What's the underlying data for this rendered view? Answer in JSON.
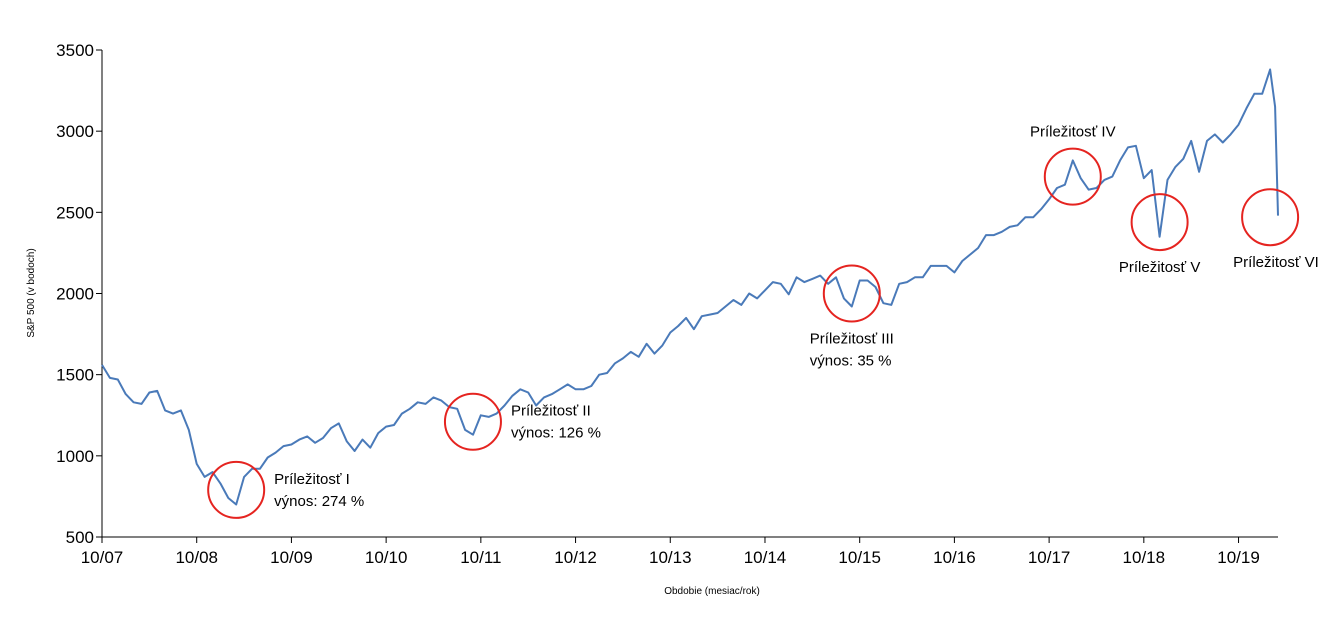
{
  "chart_data": {
    "type": "line",
    "xlabel": "Obdobie (mesiac/rok)",
    "ylabel": "S&P 500 (v bodoch)",
    "ylim": [
      500,
      3500
    ],
    "yticks": [
      500,
      1000,
      1500,
      2000,
      2500,
      3000,
      3500
    ],
    "xlim": [
      "2007-10",
      "2020-03"
    ],
    "xticks": [
      "10/07",
      "10/08",
      "10/09",
      "10/10",
      "10/11",
      "10/12",
      "10/13",
      "10/14",
      "10/15",
      "10/16",
      "10/17",
      "10/18",
      "10/19"
    ],
    "grid": false,
    "colors": {
      "line": "#4a7ab9",
      "circle": "#e52420"
    },
    "series": [
      {
        "values": [
          [
            "2007-10",
            1560
          ],
          [
            "2007-11",
            1480
          ],
          [
            "2007-12",
            1470
          ],
          [
            "2008-01",
            1380
          ],
          [
            "2008-02",
            1330
          ],
          [
            "2008-03",
            1320
          ],
          [
            "2008-04",
            1390
          ],
          [
            "2008-05",
            1400
          ],
          [
            "2008-06",
            1280
          ],
          [
            "2008-07",
            1260
          ],
          [
            "2008-08",
            1280
          ],
          [
            "2008-09",
            1160
          ],
          [
            "2008-10",
            950
          ],
          [
            "2008-11",
            870
          ],
          [
            "2008-12",
            900
          ],
          [
            "2009-01",
            830
          ],
          [
            "2009-02",
            740
          ],
          [
            "2009-03",
            700
          ],
          [
            "2009-04",
            870
          ],
          [
            "2009-05",
            920
          ],
          [
            "2009-06",
            920
          ],
          [
            "2009-07",
            990
          ],
          [
            "2009-08",
            1020
          ],
          [
            "2009-09",
            1060
          ],
          [
            "2009-10",
            1070
          ],
          [
            "2009-11",
            1100
          ],
          [
            "2009-12",
            1120
          ],
          [
            "2010-01",
            1080
          ],
          [
            "2010-02",
            1110
          ],
          [
            "2010-03",
            1170
          ],
          [
            "2010-04",
            1200
          ],
          [
            "2010-05",
            1090
          ],
          [
            "2010-06",
            1030
          ],
          [
            "2010-07",
            1100
          ],
          [
            "2010-08",
            1050
          ],
          [
            "2010-09",
            1140
          ],
          [
            "2010-10",
            1180
          ],
          [
            "2010-11",
            1190
          ],
          [
            "2010-12",
            1260
          ],
          [
            "2011-01",
            1290
          ],
          [
            "2011-02",
            1330
          ],
          [
            "2011-03",
            1320
          ],
          [
            "2011-04",
            1360
          ],
          [
            "2011-05",
            1340
          ],
          [
            "2011-06",
            1300
          ],
          [
            "2011-07",
            1290
          ],
          [
            "2011-08",
            1160
          ],
          [
            "2011-09",
            1130
          ],
          [
            "2011-10",
            1250
          ],
          [
            "2011-11",
            1240
          ],
          [
            "2011-12",
            1260
          ],
          [
            "2012-01",
            1310
          ],
          [
            "2012-02",
            1370
          ],
          [
            "2012-03",
            1410
          ],
          [
            "2012-04",
            1390
          ],
          [
            "2012-05",
            1310
          ],
          [
            "2012-06",
            1360
          ],
          [
            "2012-07",
            1380
          ],
          [
            "2012-08",
            1410
          ],
          [
            "2012-09",
            1440
          ],
          [
            "2012-10",
            1410
          ],
          [
            "2012-11",
            1410
          ],
          [
            "2012-12",
            1430
          ],
          [
            "2013-01",
            1500
          ],
          [
            "2013-02",
            1510
          ],
          [
            "2013-03",
            1570
          ],
          [
            "2013-04",
            1600
          ],
          [
            "2013-05",
            1640
          ],
          [
            "2013-06",
            1610
          ],
          [
            "2013-07",
            1690
          ],
          [
            "2013-08",
            1630
          ],
          [
            "2013-09",
            1680
          ],
          [
            "2013-10",
            1760
          ],
          [
            "2013-11",
            1800
          ],
          [
            "2013-12",
            1850
          ],
          [
            "2014-01",
            1780
          ],
          [
            "2014-02",
            1860
          ],
          [
            "2014-03",
            1870
          ],
          [
            "2014-04",
            1880
          ],
          [
            "2014-05",
            1920
          ],
          [
            "2014-06",
            1960
          ],
          [
            "2014-07",
            1930
          ],
          [
            "2014-08",
            2000
          ],
          [
            "2014-09",
            1970
          ],
          [
            "2014-10",
            2020
          ],
          [
            "2014-11",
            2070
          ],
          [
            "2014-12",
            2060
          ],
          [
            "2015-01",
            1995
          ],
          [
            "2015-02",
            2100
          ],
          [
            "2015-03",
            2070
          ],
          [
            "2015-04",
            2090
          ],
          [
            "2015-05",
            2110
          ],
          [
            "2015-06",
            2060
          ],
          [
            "2015-07",
            2100
          ],
          [
            "2015-08",
            1970
          ],
          [
            "2015-09",
            1920
          ],
          [
            "2015-10",
            2080
          ],
          [
            "2015-11",
            2080
          ],
          [
            "2015-12",
            2040
          ],
          [
            "2016-01",
            1940
          ],
          [
            "2016-02",
            1930
          ],
          [
            "2016-03",
            2060
          ],
          [
            "2016-04",
            2070
          ],
          [
            "2016-05",
            2100
          ],
          [
            "2016-06",
            2100
          ],
          [
            "2016-07",
            2170
          ],
          [
            "2016-08",
            2170
          ],
          [
            "2016-09",
            2170
          ],
          [
            "2016-10",
            2130
          ],
          [
            "2016-11",
            2200
          ],
          [
            "2016-12",
            2240
          ],
          [
            "2017-01",
            2280
          ],
          [
            "2017-02",
            2360
          ],
          [
            "2017-03",
            2360
          ],
          [
            "2017-04",
            2380
          ],
          [
            "2017-05",
            2410
          ],
          [
            "2017-06",
            2420
          ],
          [
            "2017-07",
            2470
          ],
          [
            "2017-08",
            2470
          ],
          [
            "2017-09",
            2520
          ],
          [
            "2017-10",
            2580
          ],
          [
            "2017-11",
            2650
          ],
          [
            "2017-12",
            2670
          ],
          [
            "2018-01",
            2820
          ],
          [
            "2018-02",
            2710
          ],
          [
            "2018-03",
            2640
          ],
          [
            "2018-04",
            2650
          ],
          [
            "2018-05",
            2700
          ],
          [
            "2018-06",
            2720
          ],
          [
            "2018-07",
            2820
          ],
          [
            "2018-08",
            2900
          ],
          [
            "2018-09",
            2910
          ],
          [
            "2018-10",
            2710
          ],
          [
            "2018-11",
            2760
          ],
          [
            "2018-12",
            2350
          ],
          [
            "2019-01",
            2700
          ],
          [
            "2019-02",
            2780
          ],
          [
            "2019-03",
            2830
          ],
          [
            "2019-04",
            2940
          ],
          [
            "2019-05",
            2750
          ],
          [
            "2019-06",
            2940
          ],
          [
            "2019-07",
            2980
          ],
          [
            "2019-08",
            2930
          ],
          [
            "2019-09",
            2980
          ],
          [
            "2019-10",
            3040
          ],
          [
            "2019-11",
            3140
          ],
          [
            "2019-12",
            3230
          ],
          [
            "2020-01",
            3230
          ],
          [
            "2020-02",
            3380
          ],
          [
            "2020-02-20",
            3150
          ],
          [
            "2020-03",
            2480
          ]
        ]
      }
    ],
    "annotations": [
      {
        "label": "Príležitosť I",
        "sublabel": "výnos: 274 %",
        "at": [
          "2009-03",
          790
        ]
      },
      {
        "label": "Príležitosť II",
        "sublabel": "výnos: 126 %",
        "at": [
          "2011-09",
          1210
        ]
      },
      {
        "label": "Príležitosť III",
        "sublabel": "výnos: 35 %",
        "at": [
          "2015-09",
          2000
        ]
      },
      {
        "label": "Príležitosť IV",
        "sublabel": "",
        "at": [
          "2018-01",
          2720
        ]
      },
      {
        "label": "Príležitosť V",
        "sublabel": "",
        "at": [
          "2018-12",
          2440
        ]
      },
      {
        "label": "Príležitosť VI",
        "sublabel": "",
        "at": [
          "2020-02",
          2470
        ]
      }
    ]
  }
}
